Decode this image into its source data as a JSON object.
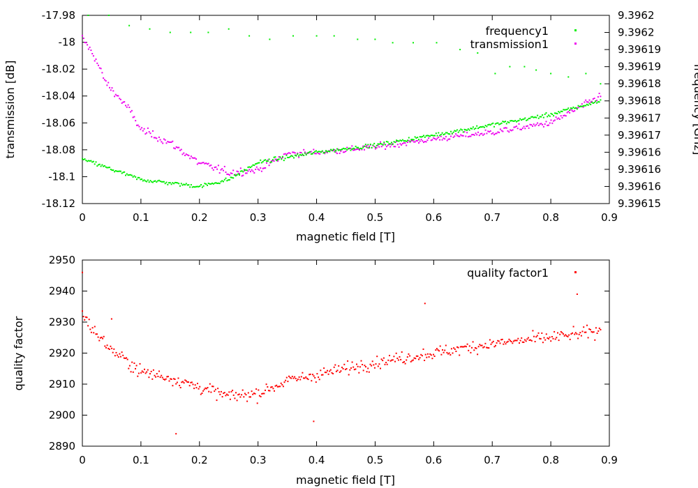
{
  "chart_data": [
    {
      "type": "scatter",
      "id": "top",
      "xlabel": "magnetic field [T]",
      "ylabel": "transmission [dB]",
      "y2label": "frequency [GHz]",
      "xlim": [
        0,
        0.9
      ],
      "ylim": [
        -18.12,
        -17.98
      ],
      "y2lim": [
        9.39615,
        9.396205
      ],
      "x_ticks": [
        "0",
        "0.1",
        "0.2",
        "0.3",
        "0.4",
        "0.5",
        "0.6",
        "0.7",
        "0.8",
        "0.9"
      ],
      "y_ticks": [
        "-17.98",
        "-18",
        "-18.02",
        "-18.04",
        "-18.06",
        "-18.08",
        "-18.1",
        "-18.12"
      ],
      "y2_ticks": [
        "9.3962",
        "9.3962",
        "9.39619",
        "9.39619",
        "9.39618",
        "9.39618",
        "9.39617",
        "9.39617",
        "9.39616",
        "9.39616",
        "9.39616",
        "9.39615"
      ],
      "grid": false,
      "legend_position": "top-right",
      "series": [
        {
          "name": "frequency1",
          "color": "#00ee00",
          "axis": "y2",
          "trend": [
            [
              0,
              9.396163
            ],
            [
              0.05,
              9.39616
            ],
            [
              0.1,
              9.396157
            ],
            [
              0.15,
              9.396156
            ],
            [
              0.2,
              9.396155
            ],
            [
              0.25,
              9.396157
            ],
            [
              0.3,
              9.396162
            ],
            [
              0.4,
              9.396165
            ],
            [
              0.5,
              9.396167
            ],
            [
              0.6,
              9.39617
            ],
            [
              0.7,
              9.396173
            ],
            [
              0.8,
              9.396176
            ],
            [
              0.885,
              9.39618
            ]
          ],
          "outliers": [
            [
              0.01,
              9.396205
            ],
            [
              0.045,
              9.396205
            ],
            [
              0.08,
              9.396202
            ],
            [
              0.115,
              9.396201
            ],
            [
              0.15,
              9.3962
            ],
            [
              0.185,
              9.3962
            ],
            [
              0.215,
              9.3962
            ],
            [
              0.25,
              9.396201
            ],
            [
              0.285,
              9.396199
            ],
            [
              0.32,
              9.396198
            ],
            [
              0.36,
              9.396199
            ],
            [
              0.4,
              9.396199
            ],
            [
              0.43,
              9.396199
            ],
            [
              0.47,
              9.396198
            ],
            [
              0.5,
              9.396198
            ],
            [
              0.53,
              9.396197
            ],
            [
              0.565,
              9.396197
            ],
            [
              0.605,
              9.396197
            ],
            [
              0.645,
              9.396195
            ],
            [
              0.675,
              9.396194
            ],
            [
              0.705,
              9.396188
            ],
            [
              0.73,
              9.39619
            ],
            [
              0.755,
              9.39619
            ],
            [
              0.775,
              9.396189
            ],
            [
              0.8,
              9.396188
            ],
            [
              0.83,
              9.396187
            ],
            [
              0.86,
              9.396188
            ],
            [
              0.885,
              9.396185
            ]
          ]
        },
        {
          "name": "transmission1",
          "color": "#ee00ee",
          "axis": "y",
          "trend": [
            [
              0,
              -17.997
            ],
            [
              0.02,
              -18.01
            ],
            [
              0.04,
              -18.03
            ],
            [
              0.06,
              -18.04
            ],
            [
              0.08,
              -18.05
            ],
            [
              0.1,
              -18.065
            ],
            [
              0.15,
              -18.075
            ],
            [
              0.2,
              -18.09
            ],
            [
              0.25,
              -18.097
            ],
            [
              0.3,
              -18.095
            ],
            [
              0.35,
              -18.083
            ],
            [
              0.4,
              -18.082
            ],
            [
              0.5,
              -18.078
            ],
            [
              0.6,
              -18.072
            ],
            [
              0.7,
              -18.067
            ],
            [
              0.8,
              -18.06
            ],
            [
              0.885,
              -18.04
            ]
          ]
        }
      ]
    },
    {
      "type": "scatter",
      "id": "bottom",
      "xlabel": "magnetic field [T]",
      "ylabel": "quality factor",
      "xlim": [
        0,
        0.9
      ],
      "ylim": [
        2890,
        2950
      ],
      "x_ticks": [
        "0",
        "0.1",
        "0.2",
        "0.3",
        "0.4",
        "0.5",
        "0.6",
        "0.7",
        "0.8",
        "0.9"
      ],
      "y_ticks": [
        "2950",
        "2940",
        "2930",
        "2920",
        "2910",
        "2900",
        "2890"
      ],
      "grid": false,
      "legend_position": "top-right",
      "series": [
        {
          "name": "quality factor1",
          "color": "#ff0000",
          "trend": [
            [
              0,
              2933
            ],
            [
              0.02,
              2927
            ],
            [
              0.05,
              2921
            ],
            [
              0.1,
              2914
            ],
            [
              0.15,
              2912
            ],
            [
              0.2,
              2909
            ],
            [
              0.25,
              2906
            ],
            [
              0.3,
              2907
            ],
            [
              0.35,
              2911
            ],
            [
              0.4,
              2913
            ],
            [
              0.5,
              2917
            ],
            [
              0.6,
              2920
            ],
            [
              0.7,
              2923
            ],
            [
              0.8,
              2925
            ],
            [
              0.885,
              2927
            ]
          ],
          "outliers": [
            [
              0.0,
              2946
            ],
            [
              0.05,
              2931
            ],
            [
              0.16,
              2894
            ],
            [
              0.395,
              2898
            ],
            [
              0.585,
              2936
            ],
            [
              0.845,
              2939
            ]
          ]
        }
      ]
    }
  ]
}
